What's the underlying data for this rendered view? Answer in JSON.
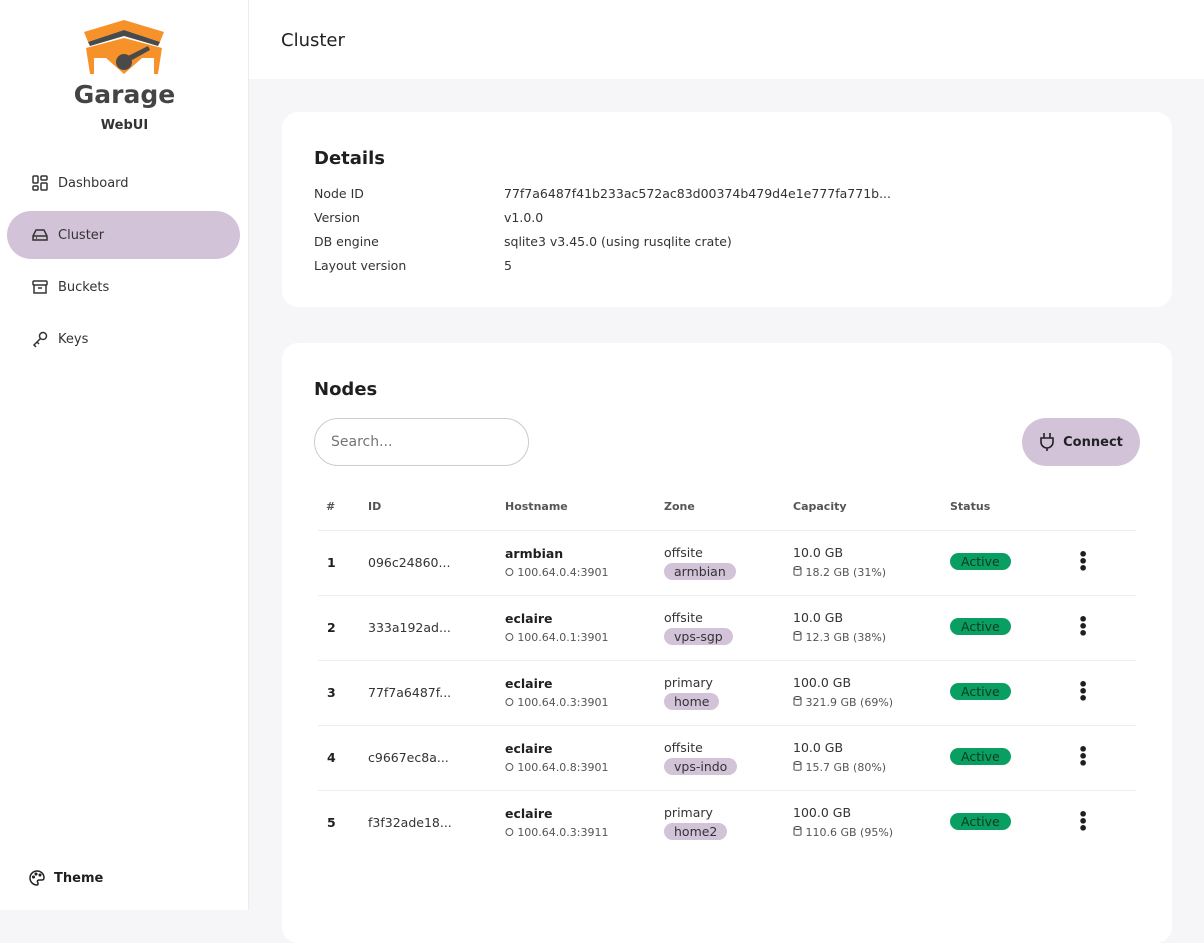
{
  "brand": {
    "title": "Garage",
    "subtitle": "WebUI"
  },
  "sidebar": {
    "items": [
      {
        "label": "Dashboard",
        "icon": "dashboard-icon"
      },
      {
        "label": "Cluster",
        "icon": "server-icon",
        "active": true
      },
      {
        "label": "Buckets",
        "icon": "archive-icon"
      },
      {
        "label": "Keys",
        "icon": "key-icon"
      }
    ],
    "theme": "Theme"
  },
  "header": {
    "title": "Cluster"
  },
  "details": {
    "title": "Details",
    "rows": [
      {
        "k": "Node ID",
        "v": "77f7a6487f41b233ac572ac83d00374b479d4e1e777fa771b..."
      },
      {
        "k": "Version",
        "v": "v1.0.0"
      },
      {
        "k": "DB engine",
        "v": "sqlite3 v3.45.0 (using rusqlite crate)"
      },
      {
        "k": "Layout version",
        "v": "5"
      }
    ]
  },
  "nodes": {
    "title": "Nodes",
    "search_placeholder": "Search...",
    "connect_label": "Connect",
    "columns": [
      "#",
      "ID",
      "Hostname",
      "Zone",
      "Capacity",
      "Status"
    ],
    "rows": [
      {
        "n": "1",
        "id": "096c24860...",
        "host": "armbian",
        "addr": "100.64.0.4:3901",
        "zone": "offsite",
        "tag": "armbian",
        "cap": "10.0 GB",
        "used": "18.2 GB (31%)",
        "status": "Active"
      },
      {
        "n": "2",
        "id": "333a192ad...",
        "host": "eclaire",
        "addr": "100.64.0.1:3901",
        "zone": "offsite",
        "tag": "vps-sgp",
        "cap": "10.0 GB",
        "used": "12.3 GB (38%)",
        "status": "Active"
      },
      {
        "n": "3",
        "id": "77f7a6487f...",
        "host": "eclaire",
        "addr": "100.64.0.3:3901",
        "zone": "primary",
        "tag": "home",
        "cap": "100.0 GB",
        "used": "321.9 GB (69%)",
        "status": "Active"
      },
      {
        "n": "4",
        "id": "c9667ec8a...",
        "host": "eclaire",
        "addr": "100.64.0.8:3901",
        "zone": "offsite",
        "tag": "vps-indo",
        "cap": "10.0 GB",
        "used": "15.7 GB (80%)",
        "status": "Active"
      },
      {
        "n": "5",
        "id": "f3f32ade18...",
        "host": "eclaire",
        "addr": "100.64.0.3:3911",
        "zone": "primary",
        "tag": "home2",
        "cap": "100.0 GB",
        "used": "110.6 GB (95%)",
        "status": "Active"
      }
    ]
  },
  "colors": {
    "accent": "#d2c3d8",
    "brand": "#f7922a",
    "active": "#0a9f62"
  }
}
